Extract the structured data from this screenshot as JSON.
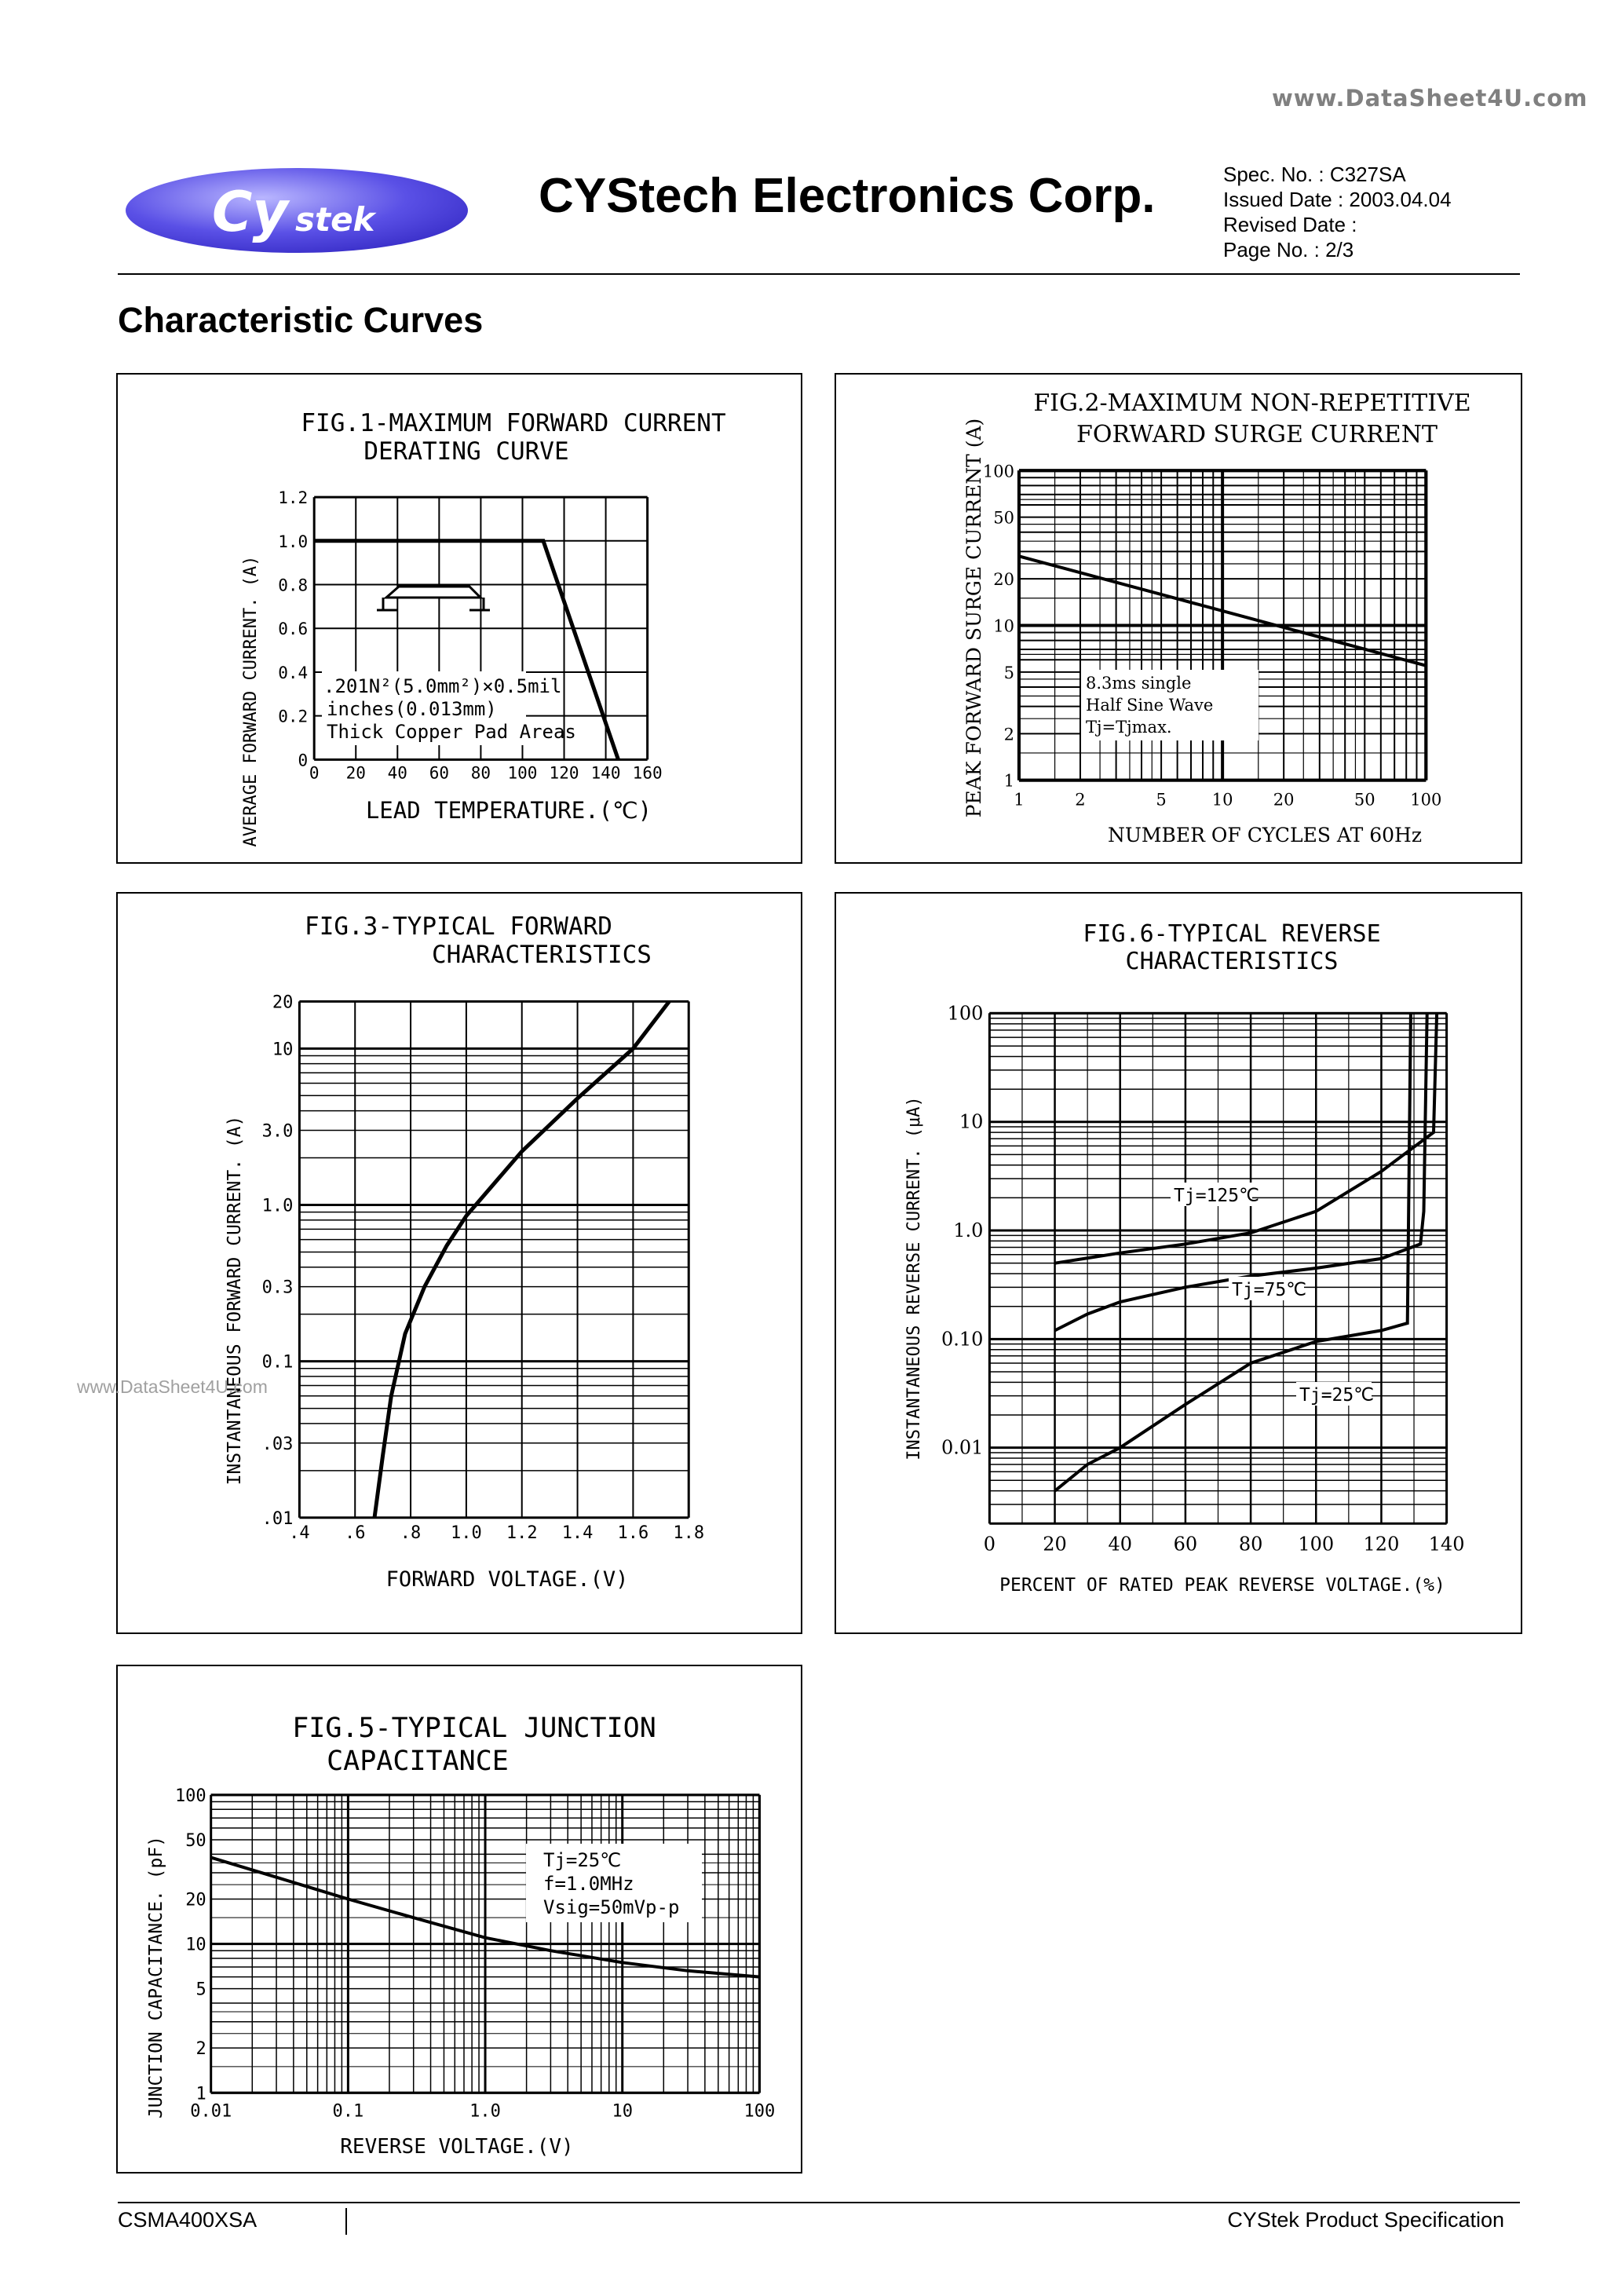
{
  "watermark_top": "www.DataSheet4U.com",
  "watermark_mid": "www.DataSheet4U.com",
  "header": {
    "logo_text": "CYstek",
    "company": "CYStech Electronics Corp.",
    "spec_no": "Spec. No. : C327SA",
    "issued_date": "Issued Date : 2003.04.04",
    "revised_date": "Revised Date :",
    "page_no": "Page No. : 2/3"
  },
  "section_title": "Characteristic Curves",
  "footer": {
    "part": "CSMA400XSA",
    "spec": "CYStek Product Specification"
  },
  "fig1": {
    "title1": "FIG.1-MAXIMUM FORWARD CURRENT",
    "title2": "DERATING CURVE",
    "ylabel": "AVERAGE FORWARD CURRENT. (A)",
    "xlabel": "LEAD TEMPERATURE.(℃)",
    "note1": ".201N²(5.0mm²)×0.5mil",
    "note2": "inches(0.013mm)",
    "note3": "Thick Copper Pad Areas"
  },
  "fig2": {
    "title1": "FIG.2-MAXIMUM NON-REPETITIVE",
    "title2": "FORWARD SURGE CURRENT",
    "ylabel": "PEAK FORWARD SURGE CURRENT (A)",
    "xlabel": "NUMBER OF CYCLES AT 60Hz",
    "note1": "8.3ms single",
    "note2": "Half Sine Wave",
    "note3": "Tj=Tjmax."
  },
  "fig3": {
    "title1": "FIG.3-TYPICAL FORWARD",
    "title2": "CHARACTERISTICS",
    "ylabel": "INSTANTANEOUS FORWARD CURRENT. (A)",
    "xlabel": "FORWARD VOLTAGE.(V)"
  },
  "fig6": {
    "title1": "FIG.6-TYPICAL REVERSE",
    "title2": "CHARACTERISTICS",
    "ylabel": "INSTANTANEOUS REVERSE CURRENT. (μA)",
    "xlabel": "PERCENT OF RATED PEAK REVERSE VOLTAGE.(%)",
    "label_125": "Tj=125℃",
    "label_75": "Tj=75℃",
    "label_25": "Tj=25℃"
  },
  "fig5": {
    "title1": "FIG.5-TYPICAL JUNCTION",
    "title2": "CAPACITANCE",
    "ylabel": "JUNCTION CAPACITANCE. (pF)",
    "xlabel": "REVERSE VOLTAGE.(V)",
    "note1": "Tj=25℃",
    "note2": "f=1.0MHz",
    "note3": "Vsig=50mVp-p"
  },
  "chart_data": [
    {
      "type": "line",
      "id": "fig1",
      "x": [
        0,
        110,
        146
      ],
      "y": [
        1.0,
        1.0,
        0.0
      ],
      "xticks": [
        "0",
        "20",
        "40",
        "60",
        "80",
        "100",
        "120",
        "140",
        "160"
      ],
      "yticks": [
        "0",
        "0.2",
        "0.4",
        "0.6",
        "0.8",
        "1.0",
        "1.2"
      ],
      "xlim": [
        0,
        160
      ],
      "ylim": [
        0,
        1.2
      ],
      "grid": true
    },
    {
      "type": "line",
      "id": "fig2",
      "x_scale": "log",
      "y_scale": "log",
      "x": [
        1,
        100
      ],
      "y": [
        28,
        5.5
      ],
      "xticks": [
        "1",
        "2",
        "5",
        "10",
        "20",
        "50",
        "100"
      ],
      "yticks": [
        "1",
        "2",
        "5",
        "10",
        "20",
        "50",
        "100"
      ],
      "xlim": [
        1,
        100
      ],
      "ylim": [
        1,
        100
      ],
      "grid": true
    },
    {
      "type": "line",
      "id": "fig3",
      "y_scale": "log",
      "x": [
        0.67,
        0.7,
        0.73,
        0.78,
        0.85,
        0.93,
        1.0,
        1.2,
        1.4,
        1.6,
        1.73
      ],
      "y": [
        0.01,
        0.025,
        0.06,
        0.15,
        0.3,
        0.55,
        0.85,
        2.2,
        4.8,
        10,
        20
      ],
      "xticks": [
        ".4",
        ".6",
        ".8",
        "1.0",
        "1.2",
        "1.4",
        "1.6",
        "1.8"
      ],
      "yticks": [
        ".01",
        ".03",
        "0.1",
        "0.3",
        "1.0",
        "3.0",
        "10",
        "20"
      ],
      "xlim": [
        0.4,
        1.8
      ],
      "ylim": [
        0.01,
        20
      ],
      "grid": true
    },
    {
      "type": "line",
      "id": "fig6",
      "y_scale": "log",
      "xticks": [
        "0",
        "20",
        "40",
        "60",
        "80",
        "100",
        "120",
        "140"
      ],
      "yticks": [
        "0.01",
        "0.10",
        "1.0",
        "10",
        "100"
      ],
      "xlim": [
        0,
        140
      ],
      "ylim": [
        0.002,
        100
      ],
      "grid": true,
      "series": [
        {
          "name": "Tj=125℃",
          "x": [
            20,
            40,
            60,
            80,
            100,
            120,
            136,
            137
          ],
          "y": [
            0.5,
            0.62,
            0.75,
            0.95,
            1.5,
            3.5,
            8,
            100
          ]
        },
        {
          "name": "Tj=75℃",
          "x": [
            20,
            30,
            40,
            60,
            80,
            100,
            120,
            132,
            133,
            134
          ],
          "y": [
            0.12,
            0.17,
            0.22,
            0.3,
            0.38,
            0.45,
            0.55,
            0.75,
            1.5,
            100
          ]
        },
        {
          "name": "Tj=25℃",
          "x": [
            20,
            30,
            40,
            60,
            80,
            100,
            120,
            128,
            129
          ],
          "y": [
            0.004,
            0.007,
            0.01,
            0.025,
            0.06,
            0.095,
            0.12,
            0.14,
            100
          ]
        }
      ]
    },
    {
      "type": "line",
      "id": "fig5",
      "x_scale": "log",
      "y_scale": "log",
      "x": [
        0.01,
        0.03,
        0.1,
        0.3,
        1,
        3,
        10,
        30,
        100
      ],
      "y": [
        38,
        28,
        20,
        15,
        11,
        9,
        7.5,
        6.6,
        6
      ],
      "xticks": [
        "0.01",
        "0.1",
        "1.0",
        "10",
        "100"
      ],
      "yticks": [
        "1",
        "2",
        "5",
        "10",
        "20",
        "50",
        "100"
      ],
      "xlim": [
        0.01,
        100
      ],
      "ylim": [
        1,
        100
      ],
      "grid": true
    }
  ]
}
